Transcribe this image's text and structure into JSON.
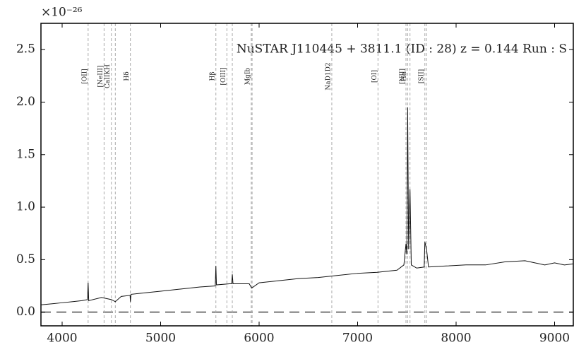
{
  "chart_data": {
    "type": "line",
    "title": "NuSTAR J110445 + 3811.1 (ID : 28)   z = 0.144   Run : S",
    "y_multiplier": "×10⁻²⁶",
    "xlim": [
      3785,
      9190
    ],
    "ylim": [
      -0.13,
      2.75
    ],
    "xticks": [
      4000,
      5000,
      6000,
      7000,
      8000,
      9000
    ],
    "yticks": [
      {
        "value": 0,
        "label": "0.0"
      },
      0.5,
      {
        "value": 1,
        "label": "1.0"
      },
      1.5,
      {
        "value": 2,
        "label": "2.0"
      },
      2.5
    ],
    "hline": 0,
    "color": "#111111",
    "x": [
      3785,
      3900,
      4000,
      4100,
      4200,
      4258,
      4264,
      4270,
      4400,
      4500,
      4540,
      4600,
      4690,
      4693,
      4700,
      4800,
      5000,
      5200,
      5400,
      5555,
      5561,
      5567,
      5700,
      5722,
      5728,
      5735,
      5900,
      5925,
      6000,
      6200,
      6400,
      6600,
      6800,
      7000,
      7200,
      7400,
      7470,
      7491,
      7500,
      7508,
      7518,
      7532,
      7545,
      7600,
      7676,
      7683,
      7700,
      7720,
      7900,
      8100,
      8300,
      8500,
      8700,
      8800,
      8900,
      9000,
      9100,
      9186
    ],
    "values": [
      0.07,
      0.08,
      0.09,
      0.1,
      0.11,
      0.12,
      0.28,
      0.11,
      0.14,
      0.12,
      0.1,
      0.15,
      0.16,
      0.1,
      0.17,
      0.18,
      0.2,
      0.22,
      0.24,
      0.25,
      0.44,
      0.26,
      0.27,
      0.27,
      0.36,
      0.27,
      0.27,
      0.23,
      0.28,
      0.3,
      0.32,
      0.33,
      0.35,
      0.37,
      0.38,
      0.4,
      0.45,
      0.65,
      0.55,
      1.95,
      0.6,
      1.17,
      0.45,
      0.42,
      0.43,
      0.67,
      0.6,
      0.43,
      0.44,
      0.45,
      0.45,
      0.48,
      0.49,
      0.47,
      0.45,
      0.47,
      0.45,
      0.46
    ],
    "lines": [
      {
        "label": "[OII]",
        "x": [
          4264
        ]
      },
      {
        "label": "[NeIII]",
        "x": [
          4426
        ]
      },
      {
        "label": "CaIIKH",
        "x": [
          4500,
          4540
        ]
      },
      {
        "label": "Hδ",
        "x": [
          4693
        ]
      },
      {
        "label": "Hβ",
        "x": [
          5561
        ]
      },
      {
        "label": "[OIII]",
        "x": [
          5673,
          5728
        ]
      },
      {
        "label": "MgIb",
        "x": [
          5920,
          5929
        ]
      },
      {
        "label": "NaD1D2",
        "x": [
          6738
        ]
      },
      {
        "label": "[OI]",
        "x": [
          7207
        ]
      },
      {
        "label": "Hα",
        "x": [
          7508
        ]
      },
      {
        "label": "[NII]",
        "x": [
          7491,
          7532
        ]
      },
      {
        "label": "[SII]",
        "x": [
          7683,
          7700
        ]
      }
    ]
  }
}
